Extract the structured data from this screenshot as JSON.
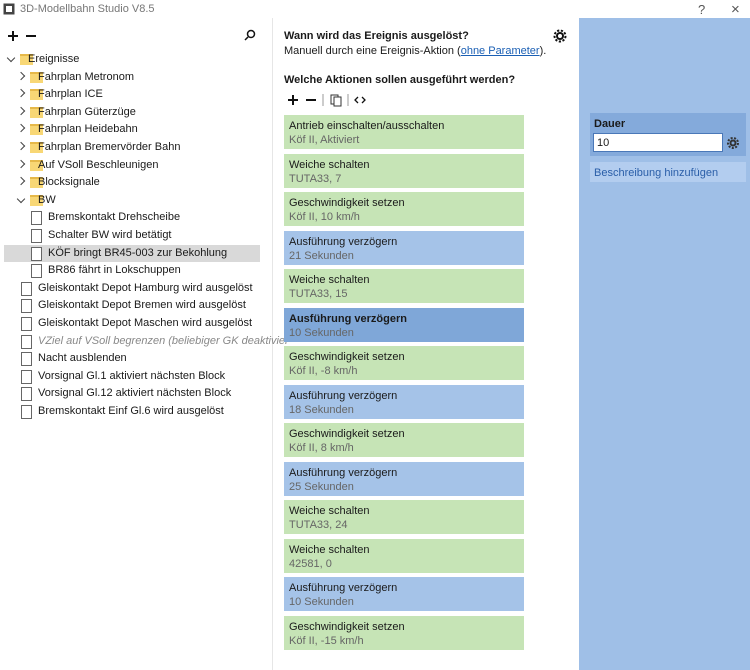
{
  "window": {
    "title": "3D-Modellbahn Studio V8.5",
    "help": "?",
    "close": "×"
  },
  "tree": {
    "items": [
      "Ereignisse",
      "Fahrplan Metronom",
      "Fahrplan ICE",
      "Fahrplan Güterzüge",
      "Fahrplan Heidebahn",
      "Fahrplan Bremervörder Bahn",
      "Auf VSoll Beschleunigen",
      "Blocksignale",
      "BW",
      "Bremskontakt Drehscheibe",
      "Schalter BW wird betätigt",
      "KÖF bringt BR45-003 zur Bekohlung",
      "BR86 fährt in Lokschuppen",
      "Gleiskontakt Depot Hamburg wird ausgelöst",
      "Gleiskontakt Depot Bremen wird ausgelöst",
      "Gleiskontakt Depot Maschen wird ausgelöst",
      "VZiel auf VSoll begrenzen (beliebiger GK deaktivier",
      "Nacht ausblenden",
      "Vorsignal Gl.1 aktiviert nächsten Block",
      "Vorsignal Gl.12 aktiviert nächsten Block",
      "Bremskontakt Einf Gl.6 wird ausgelöst"
    ]
  },
  "event": {
    "question": "Wann wird das Ereignis ausgelöst?",
    "trigger_prefix": "Manuell durch eine Ereignis-Aktion (",
    "trigger_link": "ohne Parameter",
    "trigger_suffix": ").",
    "actions_heading": "Welche Aktionen sollen ausgeführt werden?"
  },
  "actions": [
    {
      "title": "Antrieb einschalten/ausschalten",
      "detail": "Köf II, Aktiviert"
    },
    {
      "title": "Weiche schalten",
      "detail": "TUTA33, 7"
    },
    {
      "title": "Geschwindigkeit setzen",
      "detail": "Köf II, 10 km/h"
    },
    {
      "title": "Ausführung verzögern",
      "detail": "21 Sekunden"
    },
    {
      "title": "Weiche schalten",
      "detail": "TUTA33, 15"
    },
    {
      "title": "Ausführung verzögern",
      "detail": "10 Sekunden"
    },
    {
      "title": "Geschwindigkeit setzen",
      "detail": "Köf II, -8 km/h"
    },
    {
      "title": "Ausführung verzögern",
      "detail": "18 Sekunden"
    },
    {
      "title": "Geschwindigkeit setzen",
      "detail": "Köf II, 8 km/h"
    },
    {
      "title": "Ausführung verzögern",
      "detail": "25 Sekunden"
    },
    {
      "title": "Weiche schalten",
      "detail": "TUTA33, 24"
    },
    {
      "title": "Weiche schalten",
      "detail": "42581, 0"
    },
    {
      "title": "Ausführung verzögern",
      "detail": "10 Sekunden"
    },
    {
      "title": "Geschwindigkeit setzen",
      "detail": "Köf II, -15 km/h"
    }
  ],
  "properties": {
    "label": "Dauer",
    "value": "10",
    "add_description": "Beschreibung hinzufügen"
  }
}
